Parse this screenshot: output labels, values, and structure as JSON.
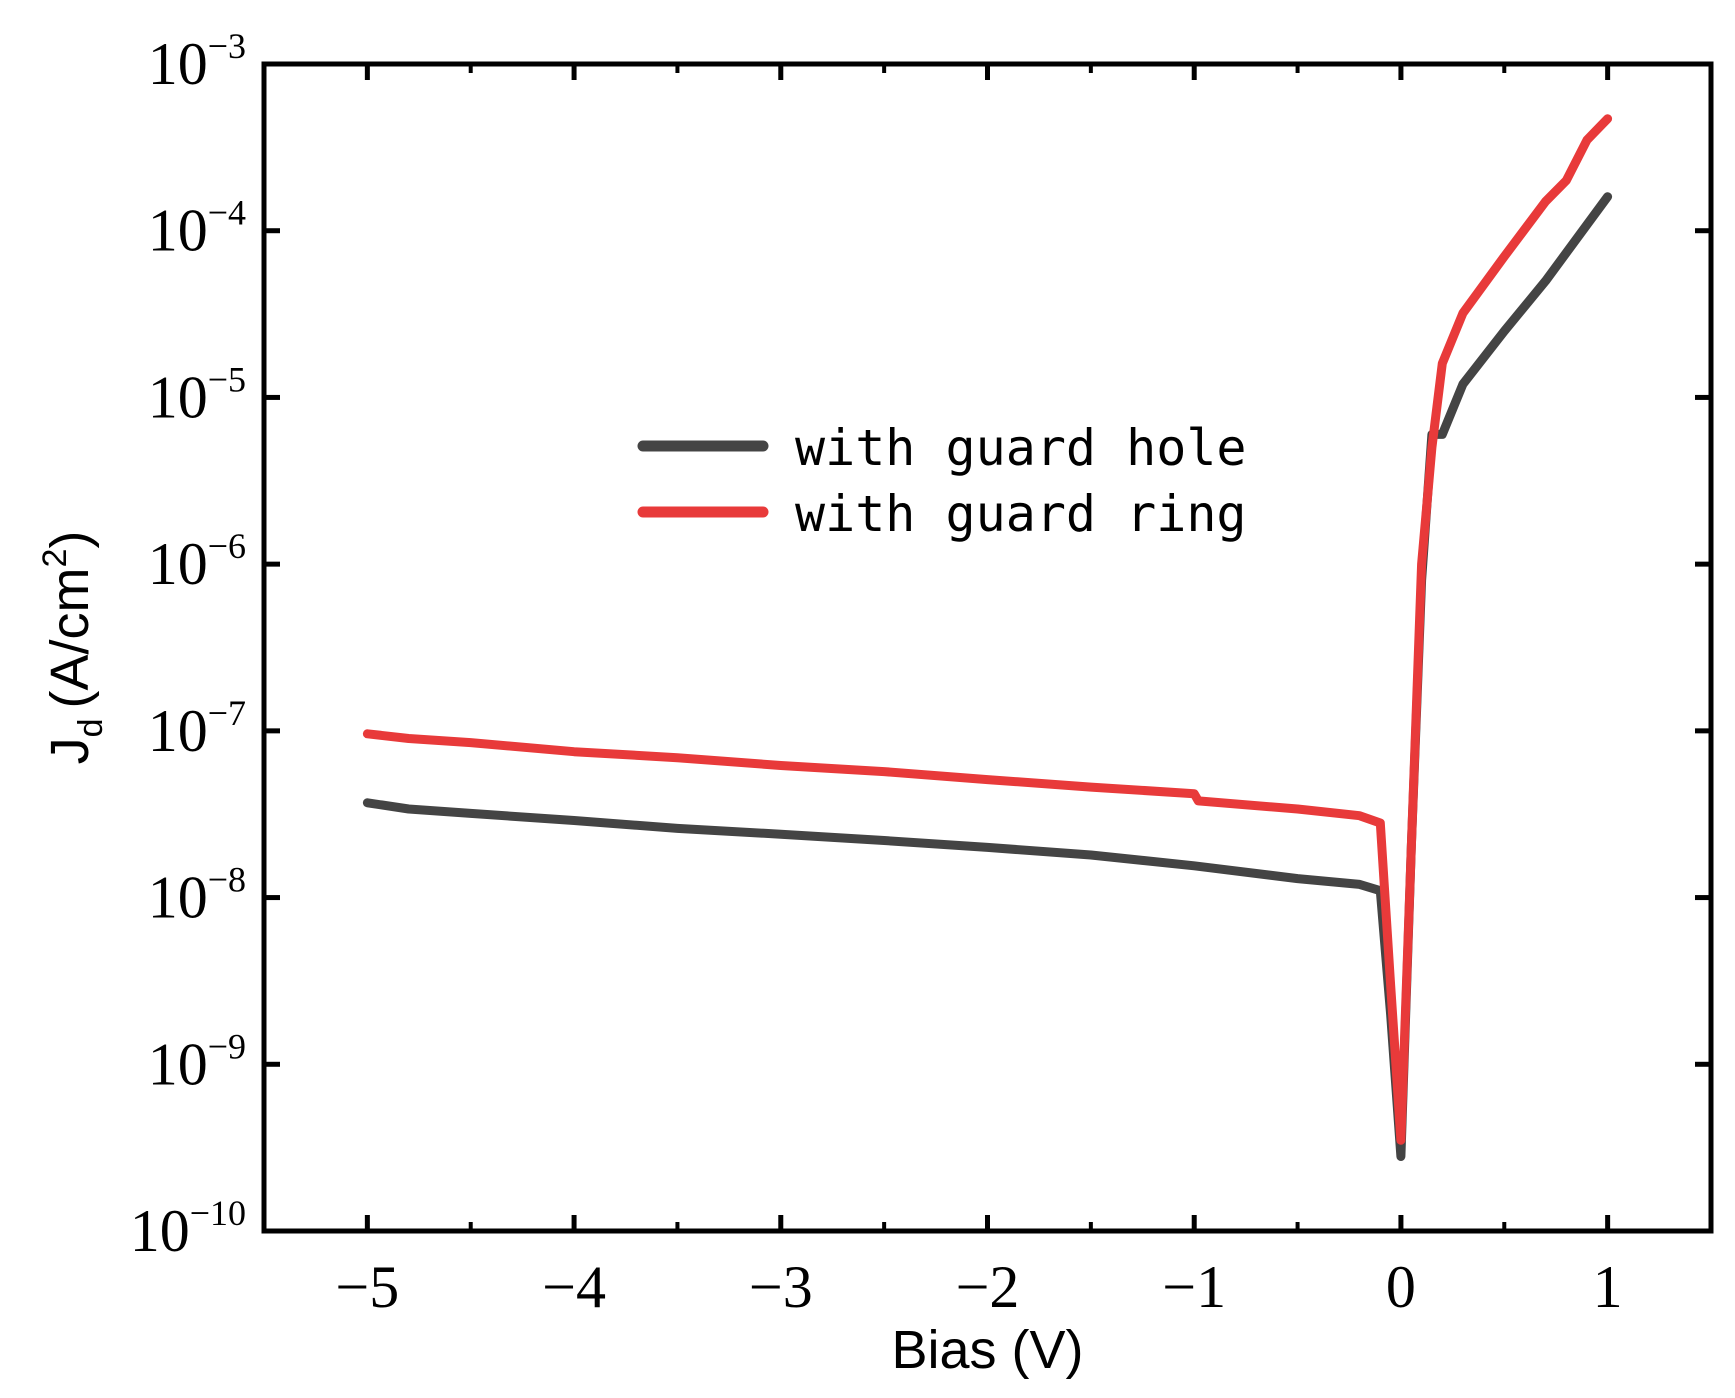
{
  "chart_data": {
    "type": "line",
    "title": "",
    "xlabel": "Bias (V)",
    "ylabel": {
      "main": "J",
      "sub": "d",
      "units": "(A/cm",
      "sup": "2",
      "close": ")"
    },
    "xlim": [
      -5.5,
      1.5
    ],
    "ylim_log10": [
      -10,
      -3
    ],
    "yscale": "log",
    "grid": false,
    "legend_position": "center",
    "x_ticks": [
      {
        "value": -5,
        "label": "−5"
      },
      {
        "value": -4,
        "label": "−4"
      },
      {
        "value": -3,
        "label": "−3"
      },
      {
        "value": -2,
        "label": "−2"
      },
      {
        "value": -1,
        "label": "−1"
      },
      {
        "value": 0,
        "label": "0"
      },
      {
        "value": 1,
        "label": "1"
      }
    ],
    "y_ticks": [
      {
        "value": -3,
        "base": "10",
        "exp": "−3"
      },
      {
        "value": -4,
        "base": "10",
        "exp": "−4"
      },
      {
        "value": -5,
        "base": "10",
        "exp": "−5"
      },
      {
        "value": -6,
        "base": "10",
        "exp": "−6"
      },
      {
        "value": -7,
        "base": "10",
        "exp": "−7"
      },
      {
        "value": -8,
        "base": "10",
        "exp": "−8"
      },
      {
        "value": -9,
        "base": "10",
        "exp": "−9"
      },
      {
        "value": -10,
        "base": "10",
        "exp": "−10"
      }
    ],
    "series": [
      {
        "name": "with guard hole",
        "color": "#444444",
        "x": [
          -5.0,
          -4.8,
          -4.5,
          -4.0,
          -3.5,
          -3.0,
          -2.5,
          -2.0,
          -1.5,
          -1.0,
          -0.5,
          -0.2,
          -0.1,
          -0.05,
          0.0,
          0.05,
          0.1,
          0.15,
          0.2,
          0.3,
          0.5,
          0.7,
          1.0
        ],
        "y": [
          3.7e-08,
          3.4e-08,
          3.2e-08,
          2.9e-08,
          2.6e-08,
          2.4e-08,
          2.2e-08,
          2e-08,
          1.8e-08,
          1.55e-08,
          1.3e-08,
          1.2e-08,
          1.1e-08,
          2e-09,
          2.8e-10,
          2e-08,
          8e-07,
          6e-06,
          6e-06,
          1.2e-05,
          2.5e-05,
          5e-05,
          0.00016
        ]
      },
      {
        "name": "with guard ring",
        "color": "#e83a3a",
        "x": [
          -5.0,
          -4.8,
          -4.5,
          -4.0,
          -3.5,
          -3.0,
          -2.5,
          -2.0,
          -1.5,
          -1.0,
          -0.98,
          -0.5,
          -0.2,
          -0.1,
          -0.05,
          0.0,
          0.05,
          0.1,
          0.15,
          0.2,
          0.3,
          0.5,
          0.7,
          0.8,
          0.9,
          1.0
        ],
        "y": [
          9.6e-08,
          9e-08,
          8.5e-08,
          7.5e-08,
          6.9e-08,
          6.2e-08,
          5.7e-08,
          5.1e-08,
          4.6e-08,
          4.2e-08,
          3.8e-08,
          3.4e-08,
          3.1e-08,
          2.8e-08,
          3e-09,
          3.5e-10,
          2e-08,
          1e-06,
          5e-06,
          1.6e-05,
          3.2e-05,
          7e-05,
          0.00015,
          0.0002,
          0.00035,
          0.00047
        ]
      }
    ]
  }
}
